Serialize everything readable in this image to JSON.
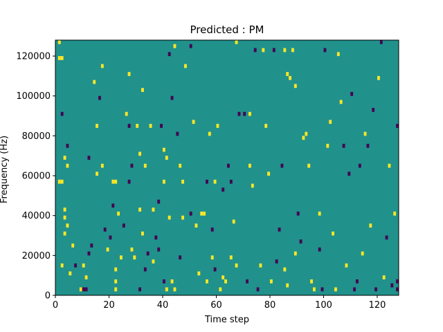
{
  "chart_data": {
    "type": "heatmap",
    "title": "Predicted : PM",
    "xlabel": "Time step",
    "ylabel": "Frequency (Hz)",
    "xlim": [
      0,
      128
    ],
    "ylim": [
      0,
      128000
    ],
    "x_ticks": [
      0,
      20,
      40,
      60,
      80,
      100,
      120
    ],
    "y_ticks": [
      0,
      20000,
      40000,
      60000,
      80000,
      100000,
      120000
    ],
    "x_tick_labels": [
      "0",
      "20",
      "40",
      "60",
      "80",
      "100",
      "120"
    ],
    "y_tick_labels": [
      "0",
      "20000",
      "40000",
      "60000",
      "80000",
      "100000",
      "120000"
    ],
    "colormap": "viridis",
    "value_levels": [
      -1,
      0,
      1
    ],
    "colors": {
      "low": "#440154",
      "mid": "#21918c",
      "high": "#fde725"
    },
    "grid": false,
    "background_value": 0,
    "bin_height_hz": 2000,
    "cells": [
      {
        "t": 1,
        "f": 126000,
        "v": 1
      },
      {
        "t": 1,
        "f": 118000,
        "v": 1
      },
      {
        "t": 2,
        "f": 118000,
        "v": 1
      },
      {
        "t": 3,
        "f": 38000,
        "v": 1
      },
      {
        "t": 3,
        "f": 42000,
        "v": 1
      },
      {
        "t": 2,
        "f": 90000,
        "v": -1
      },
      {
        "t": 4,
        "f": 74000,
        "v": -1
      },
      {
        "t": 3,
        "f": 68000,
        "v": 1
      },
      {
        "t": 4,
        "f": 64000,
        "v": 1
      },
      {
        "t": 1,
        "f": 56000,
        "v": 1
      },
      {
        "t": 2,
        "f": 56000,
        "v": 1
      },
      {
        "t": 4,
        "f": 34000,
        "v": 1
      },
      {
        "t": 3,
        "f": 30000,
        "v": 1
      },
      {
        "t": 2,
        "f": 14000,
        "v": 1
      },
      {
        "t": 5,
        "f": 10000,
        "v": 1
      },
      {
        "t": 6,
        "f": 24000,
        "v": 1
      },
      {
        "t": 7,
        "f": 14000,
        "v": -1
      },
      {
        "t": 9,
        "f": 2000,
        "v": 1
      },
      {
        "t": 10,
        "f": 2000,
        "v": -1
      },
      {
        "t": 11,
        "f": 2000,
        "v": -1
      },
      {
        "t": 10,
        "f": 14000,
        "v": 1
      },
      {
        "t": 11,
        "f": 8000,
        "v": 1
      },
      {
        "t": 12,
        "f": 20000,
        "v": -1
      },
      {
        "t": 13,
        "f": 24000,
        "v": -1
      },
      {
        "t": 12,
        "f": 68000,
        "v": -1
      },
      {
        "t": 14,
        "f": 106000,
        "v": 1
      },
      {
        "t": 16,
        "f": 98000,
        "v": -1
      },
      {
        "t": 17,
        "f": 114000,
        "v": 1
      },
      {
        "t": 15,
        "f": 84000,
        "v": 1
      },
      {
        "t": 15,
        "f": 60000,
        "v": 1
      },
      {
        "t": 18,
        "f": 32000,
        "v": -1
      },
      {
        "t": 17,
        "f": 64000,
        "v": 1
      },
      {
        "t": 19,
        "f": 22000,
        "v": 1
      },
      {
        "t": 20,
        "f": 28000,
        "v": -1
      },
      {
        "t": 21,
        "f": 56000,
        "v": 1
      },
      {
        "t": 22,
        "f": 56000,
        "v": 1
      },
      {
        "t": 21,
        "f": 44000,
        "v": -1
      },
      {
        "t": 22,
        "f": 12000,
        "v": 1
      },
      {
        "t": 22,
        "f": 2000,
        "v": 1
      },
      {
        "t": 22,
        "f": 6000,
        "v": 1
      },
      {
        "t": 23,
        "f": 40000,
        "v": 1
      },
      {
        "t": 24,
        "f": 18000,
        "v": 1
      },
      {
        "t": 25,
        "f": 34000,
        "v": -1
      },
      {
        "t": 27,
        "f": 110000,
        "v": 1
      },
      {
        "t": 26,
        "f": 90000,
        "v": 1
      },
      {
        "t": 27,
        "f": 84000,
        "v": -1
      },
      {
        "t": 27,
        "f": 56000,
        "v": -1
      },
      {
        "t": 28,
        "f": 64000,
        "v": -1
      },
      {
        "t": 28,
        "f": 22000,
        "v": 1
      },
      {
        "t": 29,
        "f": 18000,
        "v": 1
      },
      {
        "t": 30,
        "f": 84000,
        "v": 1
      },
      {
        "t": 31,
        "f": 70000,
        "v": 1
      },
      {
        "t": 31,
        "f": 42000,
        "v": 1
      },
      {
        "t": 31,
        "f": 2000,
        "v": -1
      },
      {
        "t": 32,
        "f": 102000,
        "v": 1
      },
      {
        "t": 33,
        "f": 64000,
        "v": 1
      },
      {
        "t": 32,
        "f": 30000,
        "v": 1
      },
      {
        "t": 33,
        "f": 12000,
        "v": -1
      },
      {
        "t": 34,
        "f": 20000,
        "v": -1
      },
      {
        "t": 35,
        "f": 84000,
        "v": 1
      },
      {
        "t": 36,
        "f": 42000,
        "v": 1
      },
      {
        "t": 36,
        "f": 16000,
        "v": 1
      },
      {
        "t": 37,
        "f": 28000,
        "v": -1
      },
      {
        "t": 38,
        "f": 46000,
        "v": -1
      },
      {
        "t": 38,
        "f": 22000,
        "v": -1
      },
      {
        "t": 39,
        "f": 84000,
        "v": -1
      },
      {
        "t": 40,
        "f": 72000,
        "v": 1
      },
      {
        "t": 40,
        "f": 56000,
        "v": 1
      },
      {
        "t": 40,
        "f": 6000,
        "v": -1
      },
      {
        "t": 41,
        "f": 2000,
        "v": 1
      },
      {
        "t": 41,
        "f": 68000,
        "v": 1
      },
      {
        "t": 42,
        "f": 38000,
        "v": 1
      },
      {
        "t": 42,
        "f": 120000,
        "v": -1
      },
      {
        "t": 43,
        "f": 98000,
        "v": -1
      },
      {
        "t": 43,
        "f": 6000,
        "v": 1
      },
      {
        "t": 44,
        "f": 2000,
        "v": 1
      },
      {
        "t": 44,
        "f": 124000,
        "v": 1
      },
      {
        "t": 45,
        "f": 80000,
        "v": -1
      },
      {
        "t": 46,
        "f": 64000,
        "v": 1
      },
      {
        "t": 46,
        "f": 18000,
        "v": -1
      },
      {
        "t": 47,
        "f": 56000,
        "v": 1
      },
      {
        "t": 47,
        "f": 38000,
        "v": 1
      },
      {
        "t": 48,
        "f": 114000,
        "v": 1
      },
      {
        "t": 50,
        "f": 124000,
        "v": -1
      },
      {
        "t": 51,
        "f": 86000,
        "v": 1
      },
      {
        "t": 50,
        "f": 40000,
        "v": -1
      },
      {
        "t": 52,
        "f": 34000,
        "v": 1
      },
      {
        "t": 53,
        "f": 10000,
        "v": 1
      },
      {
        "t": 54,
        "f": 40000,
        "v": 1
      },
      {
        "t": 55,
        "f": 40000,
        "v": 1
      },
      {
        "t": 56,
        "f": 56000,
        "v": -1
      },
      {
        "t": 56,
        "f": 6000,
        "v": 1
      },
      {
        "t": 57,
        "f": 80000,
        "v": 1
      },
      {
        "t": 58,
        "f": 32000,
        "v": -1
      },
      {
        "t": 58,
        "f": 18000,
        "v": 1
      },
      {
        "t": 59,
        "f": 12000,
        "v": -1
      },
      {
        "t": 59,
        "f": 56000,
        "v": 1
      },
      {
        "t": 60,
        "f": 84000,
        "v": 1
      },
      {
        "t": 61,
        "f": 2000,
        "v": 1
      },
      {
        "t": 62,
        "f": 8000,
        "v": 1
      },
      {
        "t": 62,
        "f": 52000,
        "v": -1
      },
      {
        "t": 63,
        "f": 6000,
        "v": 1
      },
      {
        "t": 64,
        "f": 64000,
        "v": -1
      },
      {
        "t": 65,
        "f": 56000,
        "v": -1
      },
      {
        "t": 65,
        "f": 18000,
        "v": 1
      },
      {
        "t": 66,
        "f": 36000,
        "v": 1
      },
      {
        "t": 67,
        "f": 126000,
        "v": 1
      },
      {
        "t": 67,
        "f": 14000,
        "v": 1
      },
      {
        "t": 68,
        "f": 90000,
        "v": -1
      },
      {
        "t": 70,
        "f": 90000,
        "v": -1
      },
      {
        "t": 72,
        "f": 90000,
        "v": 1
      },
      {
        "t": 71,
        "f": 6000,
        "v": -1
      },
      {
        "t": 72,
        "f": 64000,
        "v": 1
      },
      {
        "t": 73,
        "f": 54000,
        "v": 1
      },
      {
        "t": 74,
        "f": 122000,
        "v": -1
      },
      {
        "t": 75,
        "f": 2000,
        "v": -1
      },
      {
        "t": 76,
        "f": 14000,
        "v": 1
      },
      {
        "t": 77,
        "f": 122000,
        "v": 1
      },
      {
        "t": 78,
        "f": 84000,
        "v": 1
      },
      {
        "t": 79,
        "f": 60000,
        "v": 1
      },
      {
        "t": 80,
        "f": 6000,
        "v": 1
      },
      {
        "t": 81,
        "f": 122000,
        "v": -1
      },
      {
        "t": 82,
        "f": 16000,
        "v": -1
      },
      {
        "t": 83,
        "f": 32000,
        "v": -1
      },
      {
        "t": 84,
        "f": 64000,
        "v": -1
      },
      {
        "t": 85,
        "f": 122000,
        "v": 1
      },
      {
        "t": 86,
        "f": 110000,
        "v": 1
      },
      {
        "t": 85,
        "f": 12000,
        "v": 1
      },
      {
        "t": 86,
        "f": 4000,
        "v": 1
      },
      {
        "t": 87,
        "f": 108000,
        "v": 1
      },
      {
        "t": 88,
        "f": 122000,
        "v": 1
      },
      {
        "t": 89,
        "f": 104000,
        "v": 1
      },
      {
        "t": 89,
        "f": 20000,
        "v": 1
      },
      {
        "t": 90,
        "f": 40000,
        "v": -1
      },
      {
        "t": 91,
        "f": 26000,
        "v": -1
      },
      {
        "t": 92,
        "f": 78000,
        "v": 1
      },
      {
        "t": 93,
        "f": 80000,
        "v": 1
      },
      {
        "t": 94,
        "f": 64000,
        "v": 1
      },
      {
        "t": 95,
        "f": 6000,
        "v": 1
      },
      {
        "t": 96,
        "f": 2000,
        "v": 1
      },
      {
        "t": 98,
        "f": 40000,
        "v": 1
      },
      {
        "t": 98,
        "f": 22000,
        "v": -1
      },
      {
        "t": 99,
        "f": 2000,
        "v": -1
      },
      {
        "t": 100,
        "f": 122000,
        "v": -1
      },
      {
        "t": 101,
        "f": 74000,
        "v": 1
      },
      {
        "t": 102,
        "f": 86000,
        "v": 1
      },
      {
        "t": 103,
        "f": 30000,
        "v": 1
      },
      {
        "t": 104,
        "f": 2000,
        "v": 1
      },
      {
        "t": 105,
        "f": 120000,
        "v": 1
      },
      {
        "t": 106,
        "f": 96000,
        "v": 1
      },
      {
        "t": 107,
        "f": 74000,
        "v": -1
      },
      {
        "t": 108,
        "f": 14000,
        "v": 1
      },
      {
        "t": 109,
        "f": 60000,
        "v": -1
      },
      {
        "t": 110,
        "f": 100000,
        "v": -1
      },
      {
        "t": 111,
        "f": 2000,
        "v": -1
      },
      {
        "t": 112,
        "f": 6000,
        "v": -1
      },
      {
        "t": 113,
        "f": 64000,
        "v": -1
      },
      {
        "t": 114,
        "f": 20000,
        "v": 1
      },
      {
        "t": 115,
        "f": 80000,
        "v": 1
      },
      {
        "t": 116,
        "f": 74000,
        "v": -1
      },
      {
        "t": 117,
        "f": 34000,
        "v": 1
      },
      {
        "t": 118,
        "f": 92000,
        "v": -1
      },
      {
        "t": 119,
        "f": 2000,
        "v": -1
      },
      {
        "t": 120,
        "f": 108000,
        "v": 1
      },
      {
        "t": 121,
        "f": 126000,
        "v": -1
      },
      {
        "t": 122,
        "f": 8000,
        "v": 1
      },
      {
        "t": 123,
        "f": 28000,
        "v": -1
      },
      {
        "t": 124,
        "f": 64000,
        "v": 1
      },
      {
        "t": 125,
        "f": 4000,
        "v": -1
      },
      {
        "t": 126,
        "f": 40000,
        "v": 1
      },
      {
        "t": 127,
        "f": 2000,
        "v": -1
      },
      {
        "t": 127,
        "f": 84000,
        "v": -1
      },
      {
        "t": 127,
        "f": 6000,
        "v": -1
      }
    ]
  }
}
